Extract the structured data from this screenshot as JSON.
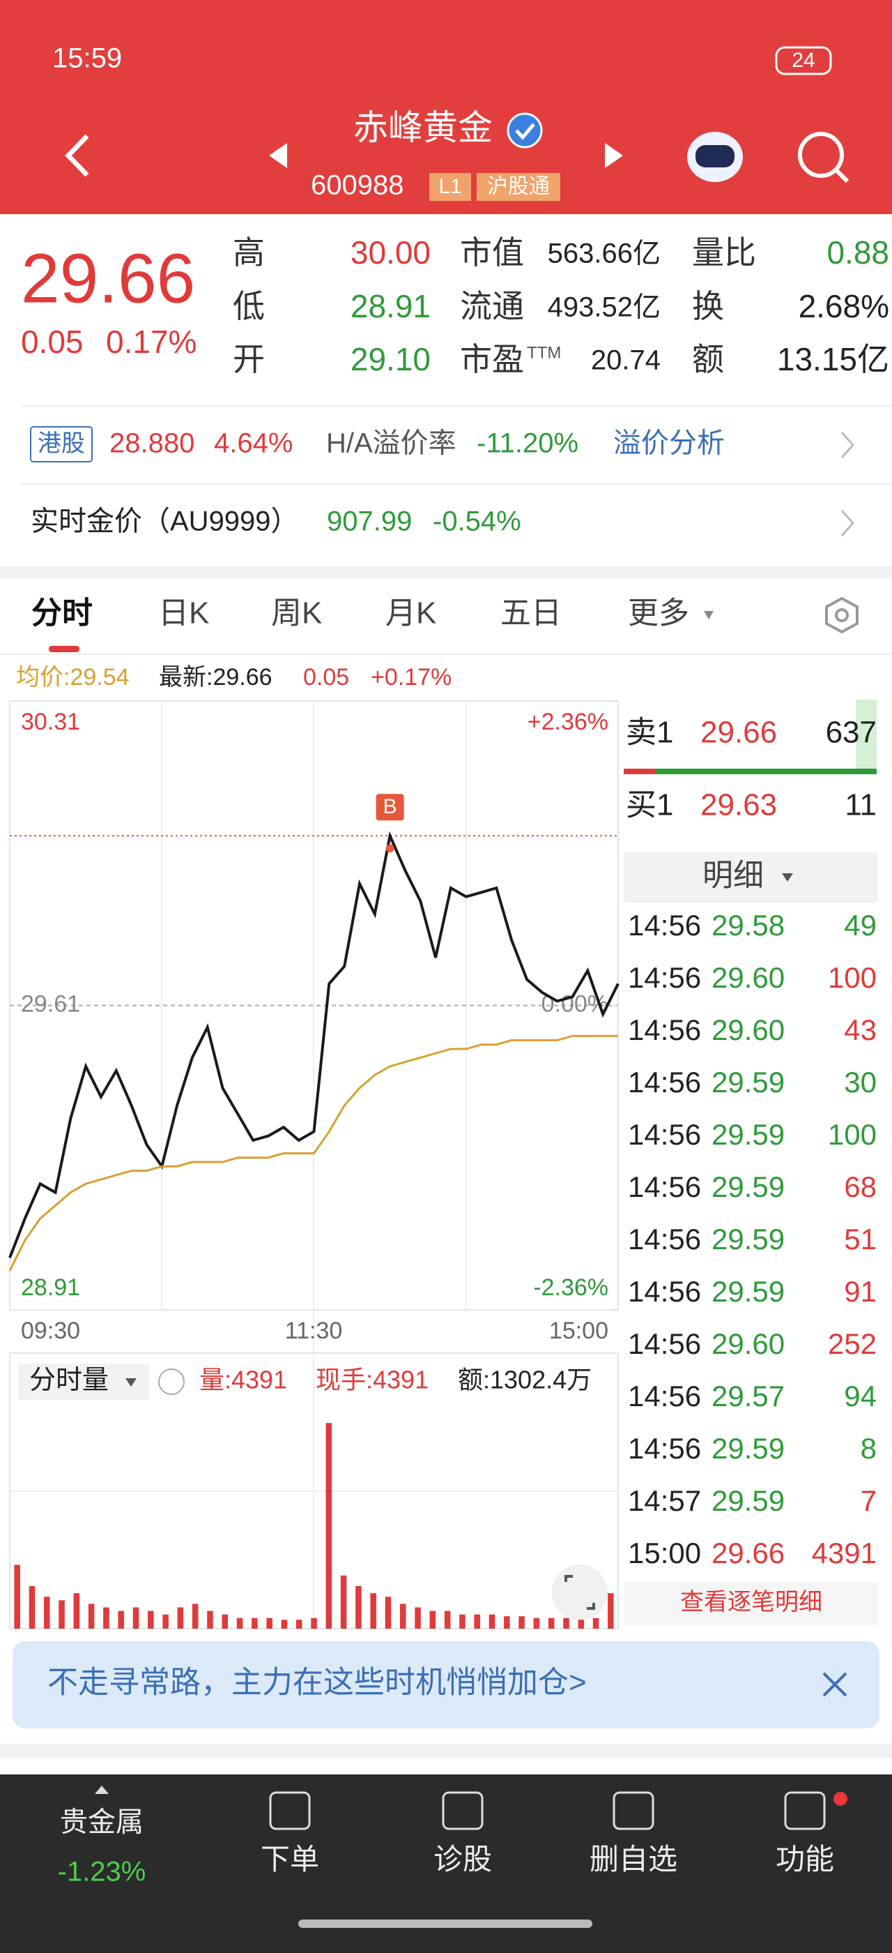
{
  "status_bar": {
    "time": "15:59",
    "battery": "24"
  },
  "header": {
    "title": "赤峰黄金",
    "code": "600988",
    "level": "L1",
    "connect": "沪股通"
  },
  "quote": {
    "price": "29.66",
    "change": "0.05",
    "change_pct": "0.17%",
    "stats": [
      {
        "label": "高",
        "value": "30.00",
        "color": "#e03a3a"
      },
      {
        "label": "低",
        "value": "28.91",
        "color": "#2e9a3a"
      },
      {
        "label": "开",
        "value": "29.10",
        "color": "#2e9a3a"
      },
      {
        "label": "市值",
        "value": "563.66亿",
        "color": "#222222"
      },
      {
        "label": "流通",
        "value": "493.52亿",
        "color": "#222222"
      },
      {
        "label": "市盈",
        "suffix": "TTM",
        "value": "20.74",
        "color": "#222222"
      },
      {
        "label": "量比",
        "value": "0.88",
        "color": "#2e9a3a"
      },
      {
        "label": "换",
        "value": "2.68%",
        "color": "#222222"
      },
      {
        "label": "额",
        "value": "13.15亿",
        "color": "#222222"
      }
    ]
  },
  "hk": {
    "tag": "港股",
    "price": "28.880",
    "pct": "4.64%",
    "premium_label": "H/A溢价率",
    "premium": "-11.20%",
    "link": "溢价分析"
  },
  "gold": {
    "label": "实时金价（AU9999）",
    "price": "907.99",
    "pct": "-0.54%"
  },
  "tabs": [
    "分时",
    "日K",
    "周K",
    "月K",
    "五日",
    "更多"
  ],
  "info": {
    "avg": "均价:29.54",
    "last": "最新:29.66",
    "change": "0.05",
    "pct": "+0.17%"
  },
  "time_labels": [
    "09:30",
    "11:30",
    "15:00"
  ],
  "volume_header": {
    "title": "分时量",
    "vol": "量:4391",
    "hand": "现手:4391",
    "amount": "额:1302.4万"
  },
  "order_book": {
    "ask": {
      "label": "卖1",
      "price": "29.66",
      "vol": "637"
    },
    "bid": {
      "label": "买1",
      "price": "29.63",
      "vol": "11"
    },
    "detail_title": "明细",
    "more": "查看逐笔明细"
  },
  "ticks": [
    {
      "time": "14:56",
      "price": "29.58",
      "vol": "49",
      "price_color": "#2e9a3a",
      "vol_color": "#2e9a3a"
    },
    {
      "time": "14:56",
      "price": "29.60",
      "vol": "100",
      "price_color": "#2e9a3a",
      "vol_color": "#e03a3a"
    },
    {
      "time": "14:56",
      "price": "29.60",
      "vol": "43",
      "price_color": "#2e9a3a",
      "vol_color": "#e03a3a"
    },
    {
      "time": "14:56",
      "price": "29.59",
      "vol": "30",
      "price_color": "#2e9a3a",
      "vol_color": "#2e9a3a"
    },
    {
      "time": "14:56",
      "price": "29.59",
      "vol": "100",
      "price_color": "#2e9a3a",
      "vol_color": "#2e9a3a"
    },
    {
      "time": "14:56",
      "price": "29.59",
      "vol": "68",
      "price_color": "#2e9a3a",
      "vol_color": "#e03a3a"
    },
    {
      "time": "14:56",
      "price": "29.59",
      "vol": "51",
      "price_color": "#2e9a3a",
      "vol_color": "#e03a3a"
    },
    {
      "time": "14:56",
      "price": "29.59",
      "vol": "91",
      "price_color": "#2e9a3a",
      "vol_color": "#e03a3a"
    },
    {
      "time": "14:56",
      "price": "29.60",
      "vol": "252",
      "price_color": "#2e9a3a",
      "vol_color": "#e03a3a"
    },
    {
      "time": "14:56",
      "price": "29.57",
      "vol": "94",
      "price_color": "#2e9a3a",
      "vol_color": "#2e9a3a"
    },
    {
      "time": "14:56",
      "price": "29.59",
      "vol": "8",
      "price_color": "#2e9a3a",
      "vol_color": "#2e9a3a"
    },
    {
      "time": "14:57",
      "price": "29.59",
      "vol": "7",
      "price_color": "#2e9a3a",
      "vol_color": "#e03a3a"
    },
    {
      "time": "15:00",
      "price": "29.66",
      "vol": "4391",
      "price_color": "#e03a3a",
      "vol_color": "#e03a3a"
    }
  ],
  "banner": "不走寻常路，主力在这些时机悄悄加仓>",
  "nav": {
    "sector": "贵金属",
    "sector_pct": "-1.23%",
    "items": [
      "下单",
      "诊股",
      "删自选",
      "功能"
    ]
  },
  "chart_data": [
    {
      "type": "line",
      "ylim": [
        28.91,
        30.31
      ],
      "yticks": [
        30.31,
        29.61,
        28.91
      ],
      "y2lim": [
        -2.36,
        2.36
      ],
      "y2ticks": [
        {
          "value": 2.36,
          "label": "+2.36%"
        },
        {
          "value": 0,
          "label": "0.00%"
        },
        {
          "value": -2.36,
          "label": "-2.36%"
        }
      ],
      "annotation": {
        "label": "B",
        "value": 30.0,
        "color": "#e8583a"
      },
      "series": [
        {
          "color": "#1a1a1a",
          "values": [
            29.03,
            29.12,
            29.2,
            29.18,
            29.35,
            29.47,
            29.4,
            29.46,
            29.38,
            29.29,
            29.24,
            29.38,
            29.49,
            29.56,
            29.42,
            29.36,
            29.3,
            29.31,
            29.33,
            29.3,
            29.32,
            29.66,
            29.7,
            29.89,
            29.82,
            30.0,
            29.92,
            29.85,
            29.72,
            29.88,
            29.86,
            29.87,
            29.88,
            29.76,
            29.67,
            29.64,
            29.62,
            29.63,
            29.69,
            29.59,
            29.66
          ]
        },
        {
          "color": "#d9a030",
          "values": [
            29.0,
            29.07,
            29.12,
            29.15,
            29.18,
            29.2,
            29.21,
            29.22,
            29.23,
            29.23,
            29.24,
            29.24,
            29.25,
            29.25,
            29.25,
            29.26,
            29.26,
            29.26,
            29.27,
            29.27,
            29.27,
            29.32,
            29.38,
            29.42,
            29.45,
            29.47,
            29.48,
            29.49,
            29.5,
            29.51,
            29.51,
            29.52,
            29.52,
            29.53,
            29.53,
            29.53,
            29.53,
            29.54,
            29.54,
            29.54,
            29.54
          ]
        }
      ]
    },
    {
      "type": "bar",
      "ylim": [
        0,
        60000
      ],
      "color": "#e03a3a",
      "values": [
        18000,
        12000,
        9000,
        8000,
        10000,
        7000,
        6000,
        5000,
        6000,
        5000,
        4000,
        6000,
        7000,
        5000,
        4000,
        3000,
        3000,
        3000,
        2500,
        2500,
        3000,
        58000,
        15000,
        12000,
        10000,
        9000,
        7000,
        6000,
        5000,
        5000,
        4000,
        4000,
        4000,
        3500,
        3500,
        3000,
        3000,
        3000,
        2500,
        3000,
        10000
      ]
    }
  ]
}
